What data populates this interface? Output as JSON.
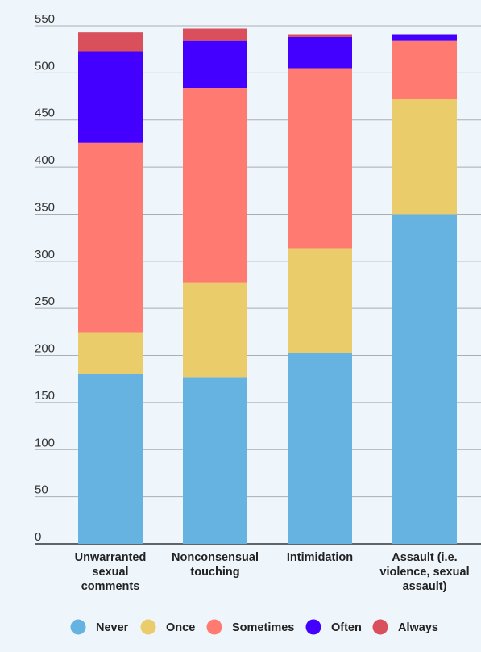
{
  "chart_data": {
    "type": "bar",
    "stacked": true,
    "title": "",
    "xlabel": "",
    "ylabel": "",
    "ylim": [
      0,
      550
    ],
    "yticks": [
      0,
      50,
      100,
      150,
      200,
      250,
      300,
      350,
      400,
      450,
      500,
      550
    ],
    "grid": true,
    "legend_position": "bottom",
    "categories": [
      [
        "Unwarranted",
        "sexual",
        "comments"
      ],
      [
        "Nonconsensual",
        "touching"
      ],
      [
        "Intimidation"
      ],
      [
        "Assault (i.e.",
        "violence, sexual",
        "assault)"
      ]
    ],
    "series": [
      {
        "name": "Never",
        "color": "#66b3e2",
        "values": [
          180,
          177,
          203,
          350
        ]
      },
      {
        "name": "Once",
        "color": "#ebcc6a",
        "values": [
          44,
          100,
          111,
          122
        ]
      },
      {
        "name": "Sometimes",
        "color": "#ff7b72",
        "values": [
          202,
          207,
          191,
          62
        ]
      },
      {
        "name": "Often",
        "color": "#4400ff",
        "values": [
          97,
          50,
          33,
          7
        ]
      },
      {
        "name": "Always",
        "color": "#d94f5c",
        "values": [
          20,
          13,
          3,
          0
        ]
      }
    ]
  }
}
